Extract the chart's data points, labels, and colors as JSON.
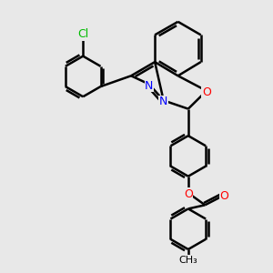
{
  "background_color": "#e8e8e8",
  "bond_color": "#000000",
  "bond_width": 1.8,
  "atom_colors": {
    "N": "#0000ff",
    "O": "#ff0000",
    "Cl": "#00bb00",
    "C": "#000000"
  },
  "font_size": 9,
  "figsize": [
    3.0,
    3.0
  ],
  "dpi": 100,
  "scale": 0.011111
}
